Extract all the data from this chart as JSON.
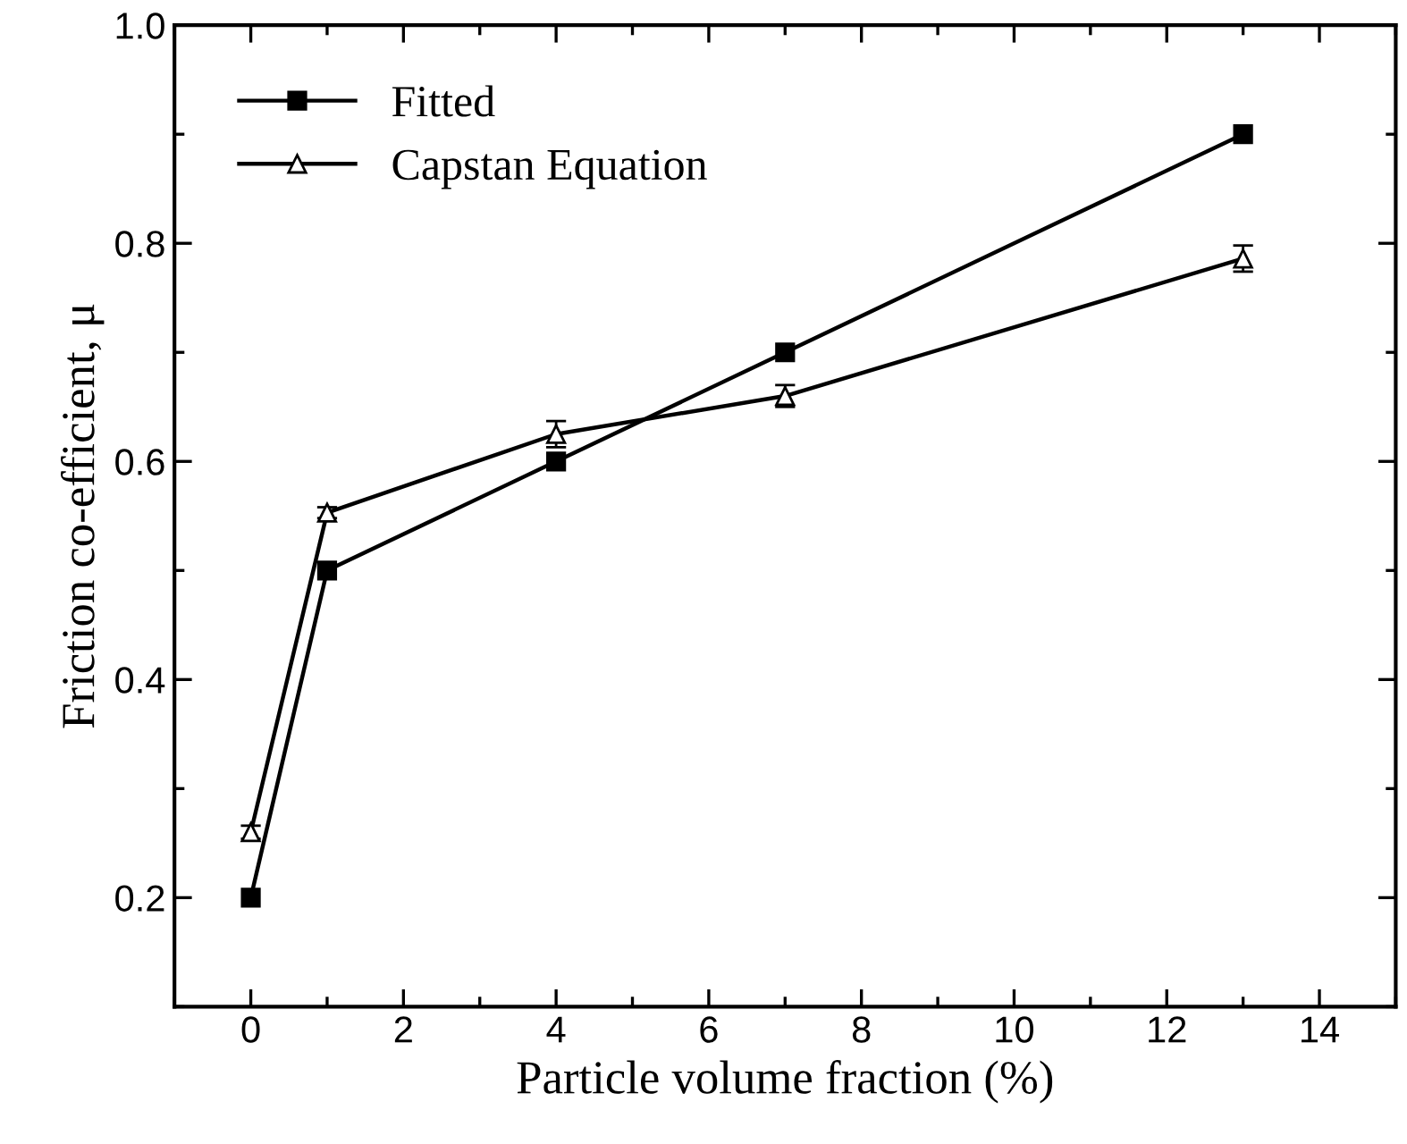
{
  "chart_data": {
    "type": "line",
    "xlabel": "Particle volume fraction (%)",
    "ylabel": "Friction co-efficient, μ",
    "x": [
      0,
      1,
      4,
      7,
      13
    ],
    "series": [
      {
        "name": "Fitted",
        "color": "#000000",
        "marker": "square",
        "values": [
          0.2,
          0.5,
          0.6,
          0.7,
          0.9
        ]
      },
      {
        "name": "Capstan Equation",
        "color": "#000000",
        "marker": "triangle",
        "values": [
          0.26,
          0.553,
          0.625,
          0.66,
          0.786
        ],
        "errors": [
          0.006,
          0.005,
          0.012,
          0.01,
          0.012
        ]
      }
    ],
    "xlim": [
      -1,
      15
    ],
    "xticks": [
      0,
      2,
      4,
      6,
      8,
      10,
      12,
      14
    ],
    "ylim": [
      0.1,
      1.0
    ],
    "yticks": [
      0.2,
      0.4,
      0.6,
      0.8,
      {
        "value": 1.0,
        "label": "1.0"
      }
    ],
    "grid": false,
    "legend": "top left",
    "line_style": "solid"
  }
}
